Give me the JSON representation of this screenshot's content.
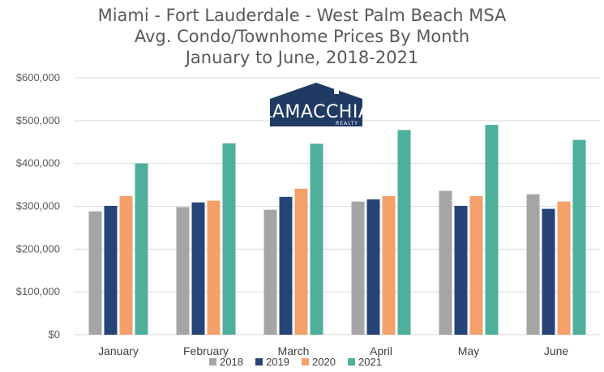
{
  "chart_data": {
    "type": "bar",
    "title_lines": [
      "Miami - Fort Lauderdale - West Palm Beach MSA",
      "Avg. Condo/Townhome Prices By Month",
      "January to June, 2018-2021"
    ],
    "categories": [
      "January",
      "February",
      "March",
      "April",
      "May",
      "June"
    ],
    "series": [
      {
        "name": "2018",
        "color": "#a5a5a5",
        "values": [
          288000,
          298000,
          292000,
          311000,
          336000,
          328000
        ]
      },
      {
        "name": "2019",
        "color": "#264478",
        "values": [
          301000,
          309000,
          322000,
          316000,
          301000,
          294000
        ]
      },
      {
        "name": "2020",
        "color": "#f4a06b",
        "values": [
          324000,
          313000,
          341000,
          324000,
          324000,
          311000
        ]
      },
      {
        "name": "2021",
        "color": "#4daf9c",
        "values": [
          400000,
          447000,
          446000,
          478000,
          490000,
          455000
        ]
      }
    ],
    "ylim": [
      0,
      600000
    ],
    "yticks": [
      "$0",
      "$100,000",
      "$200,000",
      "$300,000",
      "$400,000",
      "$500,000",
      "$600,000"
    ],
    "grid": true,
    "legend_position": "bottom"
  },
  "logo": {
    "name": "LAMACCHIA",
    "sub": "REALTY"
  }
}
